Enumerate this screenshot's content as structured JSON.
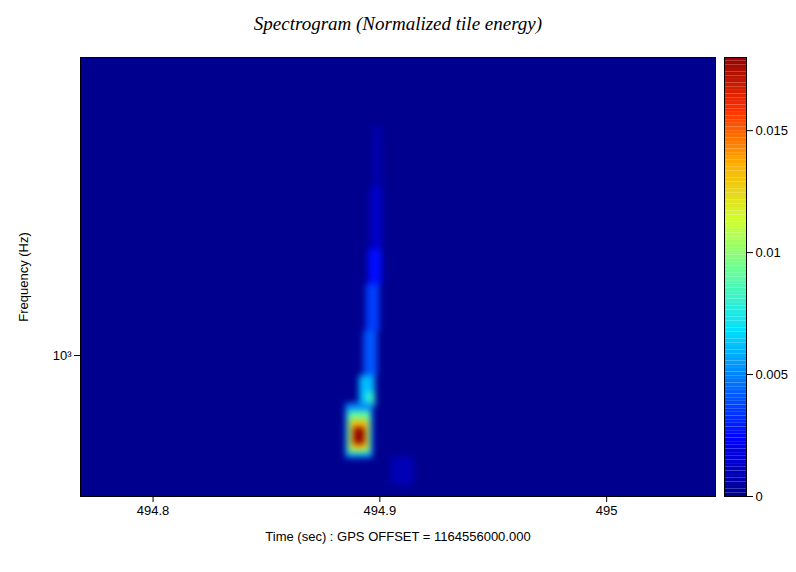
{
  "chart_data": {
    "type": "heatmap",
    "title": "Spectrogram (Normalized tile energy)",
    "x_label": "Time (sec) : GPS OFFSET = 1164556000.000",
    "y_label": "Frequency (Hz)",
    "log": "y",
    "xlim": [
      494.768,
      495.048
    ],
    "ylim": [
      350,
      9200
    ],
    "xticks": [
      494.8,
      494.9,
      495
    ],
    "yticks": [
      {
        "value": 1000,
        "label": "10³"
      }
    ],
    "cells": [
      {
        "t0": 494.905,
        "t1": 494.915,
        "f0": 380,
        "f1": 470,
        "value": 0.0008
      },
      {
        "t0": 494.897,
        "t1": 494.901,
        "f0": 3500,
        "f1": 5500,
        "value": 0.0006
      },
      {
        "t0": 494.896,
        "t1": 494.901,
        "f0": 2200,
        "f1": 3500,
        "value": 0.0012
      },
      {
        "t0": 494.895,
        "t1": 494.901,
        "f0": 1700,
        "f1": 2200,
        "value": 0.0025
      },
      {
        "t0": 494.894,
        "t1": 494.9,
        "f0": 1200,
        "f1": 1700,
        "value": 0.0035
      },
      {
        "t0": 494.893,
        "t1": 494.899,
        "f0": 860,
        "f1": 1200,
        "value": 0.004
      },
      {
        "t0": 494.891,
        "t1": 494.898,
        "f0": 700,
        "f1": 860,
        "value": 0.006
      },
      {
        "t0": 494.894,
        "t1": 494.898,
        "f0": 680,
        "f1": 760,
        "value": 0.008
      },
      {
        "t0": 494.885,
        "t1": 494.897,
        "f0": 465,
        "f1": 700,
        "value": 0.005
      },
      {
        "t0": 494.886,
        "t1": 494.896,
        "f0": 480,
        "f1": 660,
        "value": 0.009
      },
      {
        "t0": 494.887,
        "t1": 494.895,
        "f0": 495,
        "f1": 620,
        "value": 0.013
      },
      {
        "t0": 494.8885,
        "t1": 494.8935,
        "f0": 515,
        "f1": 585,
        "value": 0.018
      }
    ],
    "colorbar": {
      "range": [
        0,
        0.018
      ],
      "ticks": [
        0,
        0.005,
        0.01,
        0.015
      ]
    }
  }
}
